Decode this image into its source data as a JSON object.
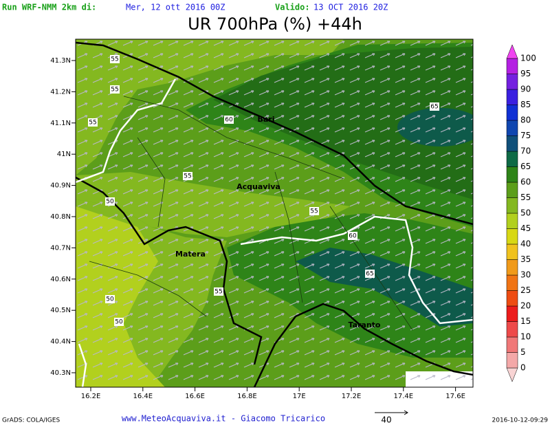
{
  "header": {
    "run_label": "Run WRF-NMM 2km di:",
    "run_date": "Mer, 12 ott 2016 00Z",
    "valid_label": "Valido:",
    "valid_date": "13 OCT 2016 20Z",
    "title": "UR 700hPa (%) +44h"
  },
  "map": {
    "lat_labels": [
      "41.3N",
      "41.2N",
      "41.1N",
      "41N",
      "40.9N",
      "40.8N",
      "40.7N",
      "40.6N",
      "40.5N",
      "40.4N",
      "40.3N"
    ],
    "lon_labels": [
      "16.2E",
      "16.4E",
      "16.6E",
      "16.8E",
      "17E",
      "17.2E",
      "17.4E",
      "17.6E"
    ],
    "places": [
      "Bari",
      "Acquaviva",
      "Matera",
      "Taranto"
    ],
    "contour_labels": [
      "55",
      "55",
      "55",
      "55",
      "55",
      "55",
      "60",
      "60",
      "65",
      "65",
      "50",
      "50",
      "50"
    ]
  },
  "colorbar": {
    "labels": [
      "0",
      "5",
      "10",
      "15",
      "20",
      "25",
      "30",
      "35",
      "40",
      "45",
      "50",
      "55",
      "60",
      "65",
      "70",
      "75",
      "80",
      "85",
      "90",
      "95",
      "100"
    ],
    "colors": [
      "#f8d4d4",
      "#f4a8a8",
      "#f07878",
      "#ee4a4a",
      "#ec1c1c",
      "#ee4c12",
      "#f07414",
      "#f09a1a",
      "#f0c21e",
      "#d8d814",
      "#b2d01e",
      "#84b820",
      "#5c9e1a",
      "#2e8418",
      "#0e6a46",
      "#10507a",
      "#1046b0",
      "#1030d4",
      "#3a20e0",
      "#7420e0",
      "#b420e2",
      "#f044f0"
    ]
  },
  "footer": {
    "credit": "GrADS: COLA/IGES",
    "site": "www.MeteoAcquaviva.it - Giacomo Tricarico",
    "vector_scale": "40",
    "timestamp": "2016-10-12-09:29"
  }
}
